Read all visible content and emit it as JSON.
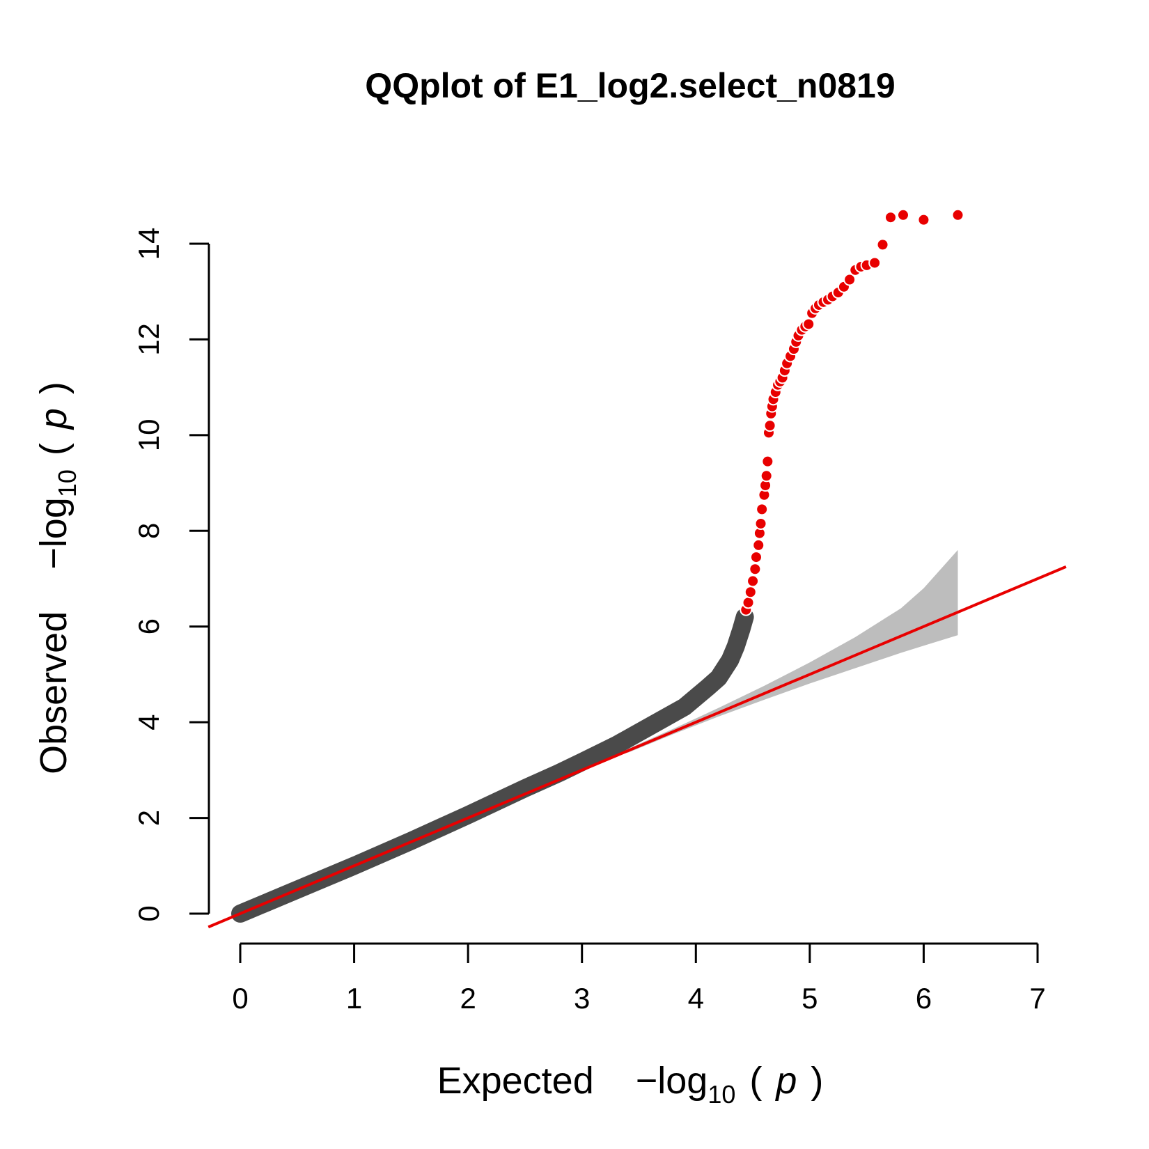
{
  "chart_data": {
    "type": "scatter",
    "title": "QQplot of E1_log2.select_n0819",
    "xlabel": {
      "word": "Expected",
      "formula": [
        "−log",
        "10",
        "(",
        "p",
        ")"
      ]
    },
    "ylabel": {
      "word": "Observed",
      "formula": [
        "−log",
        "10",
        "(",
        "p",
        ")"
      ]
    },
    "xlim": [
      0,
      7
    ],
    "ylim": [
      0,
      14
    ],
    "x_ticks": [
      0,
      1,
      2,
      3,
      4,
      5,
      6,
      7
    ],
    "y_ticks": [
      0,
      2,
      4,
      6,
      8,
      10,
      12,
      14
    ],
    "grid": false,
    "legend": "none",
    "colors": {
      "background_points": "#4a4a4a",
      "significant_points": "#e80000",
      "reference_line": "#e80000",
      "confidence_band": "#bdbdbd"
    },
    "reference_line": {
      "slope": 1,
      "intercept": 0
    },
    "confidence_band": {
      "x": [
        3.4,
        3.8,
        4.2,
        4.6,
        5.0,
        5.4,
        5.8,
        6.0,
        6.3
      ],
      "upper": [
        3.44,
        3.86,
        4.3,
        4.76,
        5.25,
        5.78,
        6.38,
        6.8,
        7.6
      ],
      "lower": [
        3.36,
        3.75,
        4.12,
        4.47,
        4.81,
        5.13,
        5.45,
        5.6,
        5.82
      ]
    },
    "background_curve": {
      "x": [
        0.0,
        0.5,
        1.0,
        1.5,
        2.0,
        2.5,
        2.8,
        3.0,
        3.3,
        3.6,
        3.9,
        4.1,
        4.2,
        4.3,
        4.35,
        4.4,
        4.43
      ],
      "y": [
        0.0,
        0.5,
        1.0,
        1.52,
        2.06,
        2.62,
        2.94,
        3.17,
        3.52,
        3.92,
        4.32,
        4.72,
        4.93,
        5.3,
        5.58,
        5.95,
        6.2
      ]
    },
    "significant_points": {
      "x": [
        4.44,
        4.46,
        4.48,
        4.5,
        4.52,
        4.53,
        4.55,
        4.56,
        4.57,
        4.58,
        4.6,
        4.61,
        4.62,
        4.63,
        4.64,
        4.65,
        4.66,
        4.67,
        4.68,
        4.7,
        4.72,
        4.74,
        4.76,
        4.78,
        4.8,
        4.83,
        4.86,
        4.88,
        4.9,
        4.93,
        4.96,
        4.99,
        5.02,
        5.05,
        5.08,
        5.12,
        5.16,
        5.2,
        5.25,
        5.3,
        5.35,
        5.4,
        5.45,
        5.5,
        5.57,
        5.64,
        5.71,
        5.82,
        6.0,
        6.3
      ],
      "y": [
        6.35,
        6.5,
        6.72,
        6.95,
        7.2,
        7.45,
        7.7,
        7.95,
        8.15,
        8.45,
        8.75,
        8.95,
        9.15,
        9.45,
        10.05,
        10.2,
        10.45,
        10.6,
        10.75,
        10.9,
        11.05,
        11.12,
        11.2,
        11.35,
        11.5,
        11.65,
        11.8,
        11.95,
        12.08,
        12.2,
        12.27,
        12.32,
        12.55,
        12.65,
        12.72,
        12.78,
        12.83,
        12.9,
        12.98,
        13.1,
        13.25,
        13.45,
        13.52,
        13.55,
        13.6,
        13.98,
        14.55,
        14.6,
        14.5,
        14.6
      ]
    }
  }
}
